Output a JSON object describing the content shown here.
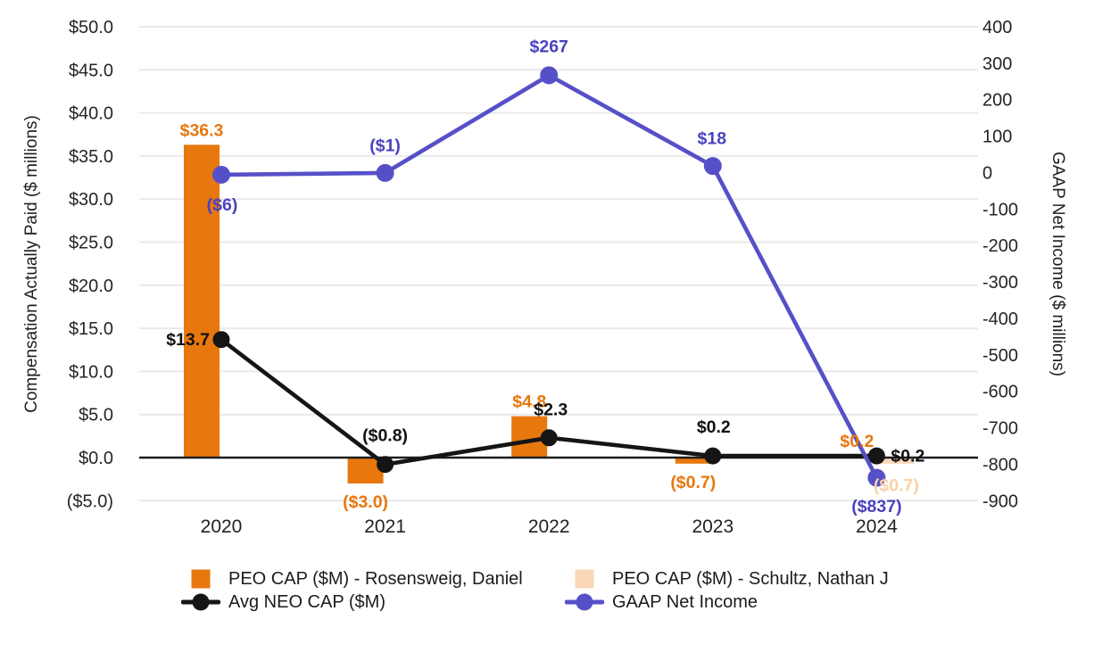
{
  "chart_data": {
    "type": "combo (bar + line, dual y-axis)",
    "categories": [
      "2020",
      "2021",
      "2022",
      "2023",
      "2024"
    ],
    "series": [
      {
        "name": "PEO CAP ($M) - Rosensweig, Daniel",
        "type": "bar",
        "axis": "left",
        "color": "#E8770E",
        "label_color": "#E8770E",
        "values": [
          36.3,
          -3.0,
          4.8,
          -0.7,
          0.2
        ],
        "labels": [
          "$36.3",
          "($3.0)",
          "$4.8",
          "($0.7)",
          "$0.2"
        ]
      },
      {
        "name": "PEO CAP ($M) - Schultz, Nathan J",
        "type": "bar",
        "axis": "left",
        "color": "#FAD8B6",
        "label_color": "#F9D0A8",
        "values": [
          null,
          null,
          null,
          null,
          -0.7
        ],
        "labels": [
          null,
          null,
          null,
          null,
          "($0.7)"
        ]
      },
      {
        "name": "Avg NEO CAP ($M)",
        "type": "line",
        "axis": "left",
        "color": "#151515",
        "label_color": "#111111",
        "values": [
          13.7,
          -0.8,
          2.3,
          0.2,
          0.2
        ],
        "labels": [
          "$13.7",
          "($0.8)",
          "$2.3",
          "$0.2",
          "$0.2"
        ]
      },
      {
        "name": "GAAP Net Income",
        "type": "line",
        "axis": "right",
        "color": "#5650C8",
        "label_color": "#4A42BF",
        "values": [
          -6,
          -1,
          267,
          18,
          -837
        ],
        "labels": [
          "($6)",
          "($1)",
          "$267",
          "$18",
          "($837)"
        ]
      }
    ],
    "left_axis": {
      "title": "Compensation Actually Paid ($ millions)",
      "max": 50,
      "min": -5,
      "step": 5,
      "tick_labels": [
        "$50.0",
        "$45.0",
        "$40.0",
        "$35.0",
        "$30.0",
        "$25.0",
        "$20.0",
        "$15.0",
        "$10.0",
        "$5.0",
        "$0.0",
        "($5.0)"
      ]
    },
    "right_axis": {
      "title": "GAAP Net Income ($ millions)",
      "max": 400,
      "min": -900,
      "step": 100,
      "tick_labels": [
        "400",
        "300",
        "200",
        "100",
        "0",
        "-100",
        "-200",
        "-300",
        "-400",
        "-500",
        "-600",
        "-700",
        "-800",
        "-900"
      ]
    },
    "grid": true,
    "legend_position": "bottom",
    "colors": {
      "grid": "#E9E9EB",
      "zero_line": "#1D1D1D",
      "tick_text": "#252525",
      "background": "#FFFFFF"
    }
  }
}
